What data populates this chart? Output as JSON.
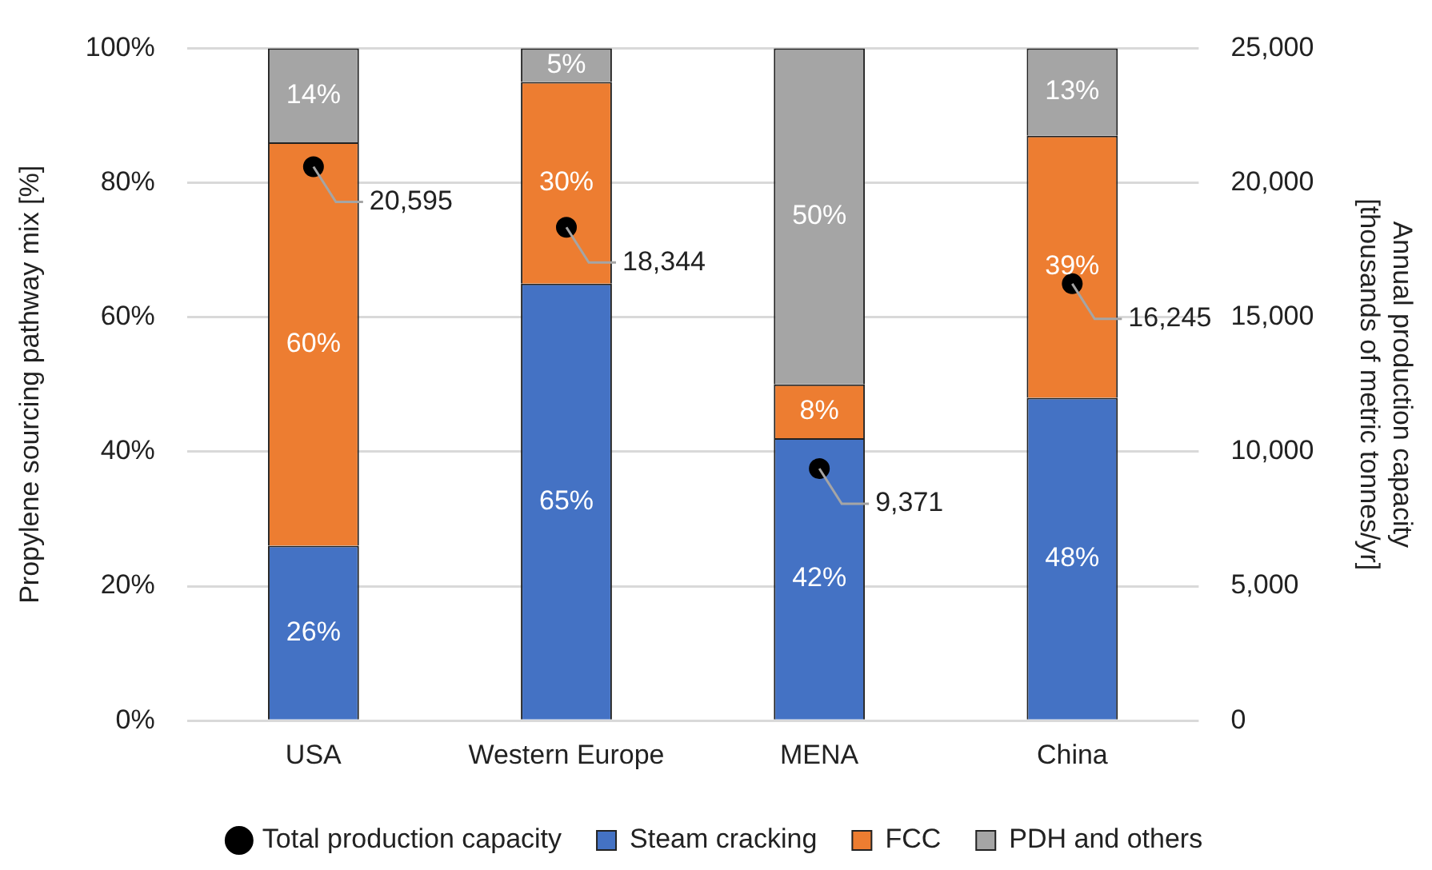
{
  "chart_data": {
    "type": "bar",
    "stacked": true,
    "categories": [
      "USA",
      "Western Europe",
      "MENA",
      "China"
    ],
    "series": [
      {
        "name": "Steam cracking",
        "color": "#4472c4",
        "values": [
          26,
          65,
          42,
          48
        ],
        "value_labels": [
          "26%",
          "65%",
          "42%",
          "48%"
        ]
      },
      {
        "name": "FCC",
        "color": "#ed7d31",
        "values": [
          60,
          30,
          8,
          39
        ],
        "value_labels": [
          "60%",
          "30%",
          "8%",
          "39%"
        ]
      },
      {
        "name": "PDH and others",
        "color": "#a5a5a5",
        "values": [
          14,
          5,
          50,
          13
        ],
        "value_labels": [
          "14%",
          "5%",
          "50%",
          "13%"
        ]
      },
      {
        "name": "Total production capacity",
        "type": "scatter",
        "axis": "y2",
        "color": "#000000",
        "x": [
          "USA",
          "Western Europe",
          "MENA",
          "China"
        ],
        "values": [
          20595,
          18344,
          9371,
          16245
        ],
        "value_labels": [
          "20,595",
          "18,344",
          "9,371",
          "16,245"
        ]
      }
    ],
    "ylabel": "Propylene sourcing pathway mix [%]",
    "y2label": "Annual production capacity\n[thousands of metric tonnes/yr]",
    "ylim": [
      0,
      100
    ],
    "yticks": [
      {
        "value": 0,
        "label": "0%"
      },
      {
        "value": 20,
        "label": "20%"
      },
      {
        "value": 40,
        "label": "40%"
      },
      {
        "value": 60,
        "label": "60%"
      },
      {
        "value": 80,
        "label": "80%"
      },
      {
        "value": 100,
        "label": "100%"
      }
    ],
    "y2lim": [
      0,
      25000
    ],
    "y2ticks": [
      0,
      {
        "value": 5000,
        "label": "5,000"
      },
      {
        "value": 10000,
        "label": "10,000"
      },
      {
        "value": 15000,
        "label": "15,000"
      },
      {
        "value": 20000,
        "label": "20,000"
      },
      {
        "value": 25000,
        "label": "25,000"
      }
    ],
    "grid": "y",
    "legend": "bottom",
    "marker": "circle"
  }
}
